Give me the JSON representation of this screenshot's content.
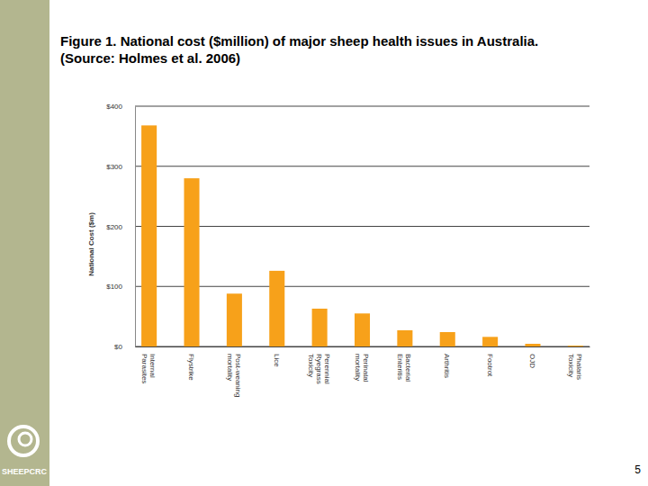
{
  "chart_data": {
    "type": "bar",
    "title": "Figure 1. National cost ($million) of major sheep health issues in Australia. (Source: Holmes et al. 2006)",
    "y_label": "National Cost ($m)",
    "categories": [
      "Internal Parasites",
      "Flystrike",
      "Post-weaning mortality",
      "Lice",
      "Perennial Ryegrass Toxicity",
      "Perinatal mortality",
      "Bacterial Enteritis",
      "Arthritis",
      "Footrot",
      "OJD",
      "Phalaris Toxicity"
    ],
    "values": [
      368,
      280,
      88,
      126,
      63,
      55,
      27,
      24,
      16,
      4.5,
      1.5
    ],
    "color": "#f7a11a",
    "ylim": [
      0,
      400
    ],
    "yticks": [
      {
        "value": 0,
        "label": "$0"
      },
      {
        "value": 100,
        "label": "$100"
      },
      {
        "value": 200,
        "label": "$200"
      },
      {
        "value": 300,
        "label": "$300"
      },
      {
        "value": 400,
        "label": "$400"
      }
    ],
    "grid": true
  },
  "slide": {
    "logo_text": "SHEEPCRC",
    "page_number": 5
  }
}
